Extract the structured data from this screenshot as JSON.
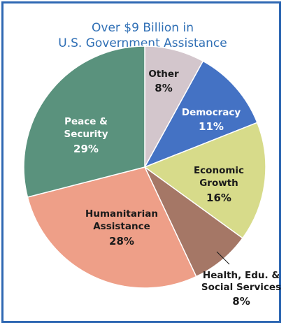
{
  "chart_data": {
    "type": "pie",
    "title": [
      "Over $9 Billion in",
      "U.S. Government Assistance"
    ],
    "slices": [
      {
        "name": "Other",
        "label_lines": [
          "Other"
        ],
        "pct_text": "8%",
        "value": 8,
        "color": "#d3c6cc",
        "text_color": "#1a1a1a"
      },
      {
        "name": "Democracy",
        "label_lines": [
          "Democracy"
        ],
        "pct_text": "11%",
        "value": 11,
        "color": "#4472c4",
        "text_color": "#ffffff"
      },
      {
        "name": "Economic Growth",
        "label_lines": [
          "Economic",
          "Growth"
        ],
        "pct_text": "16%",
        "value": 16,
        "color": "#d7db8a",
        "text_color": "#1a1a1a"
      },
      {
        "name": "Health, Edu. & Social Services",
        "label_lines": [
          "Health, Edu. &",
          "Social Services"
        ],
        "pct_text": "8%",
        "value": 8,
        "color": "#a57766",
        "text_color": "#1a1a1a"
      },
      {
        "name": "Humanitarian Assistance",
        "label_lines": [
          "Humanitarian",
          "Assistance"
        ],
        "pct_text": "28%",
        "value": 28,
        "color": "#ee9f88",
        "text_color": "#1a1a1a"
      },
      {
        "name": "Peace & Security",
        "label_lines": [
          "Peace &",
          "Security"
        ],
        "pct_text": "29%",
        "value": 29,
        "color": "#5a927d",
        "text_color": "#ffffff"
      }
    ]
  }
}
